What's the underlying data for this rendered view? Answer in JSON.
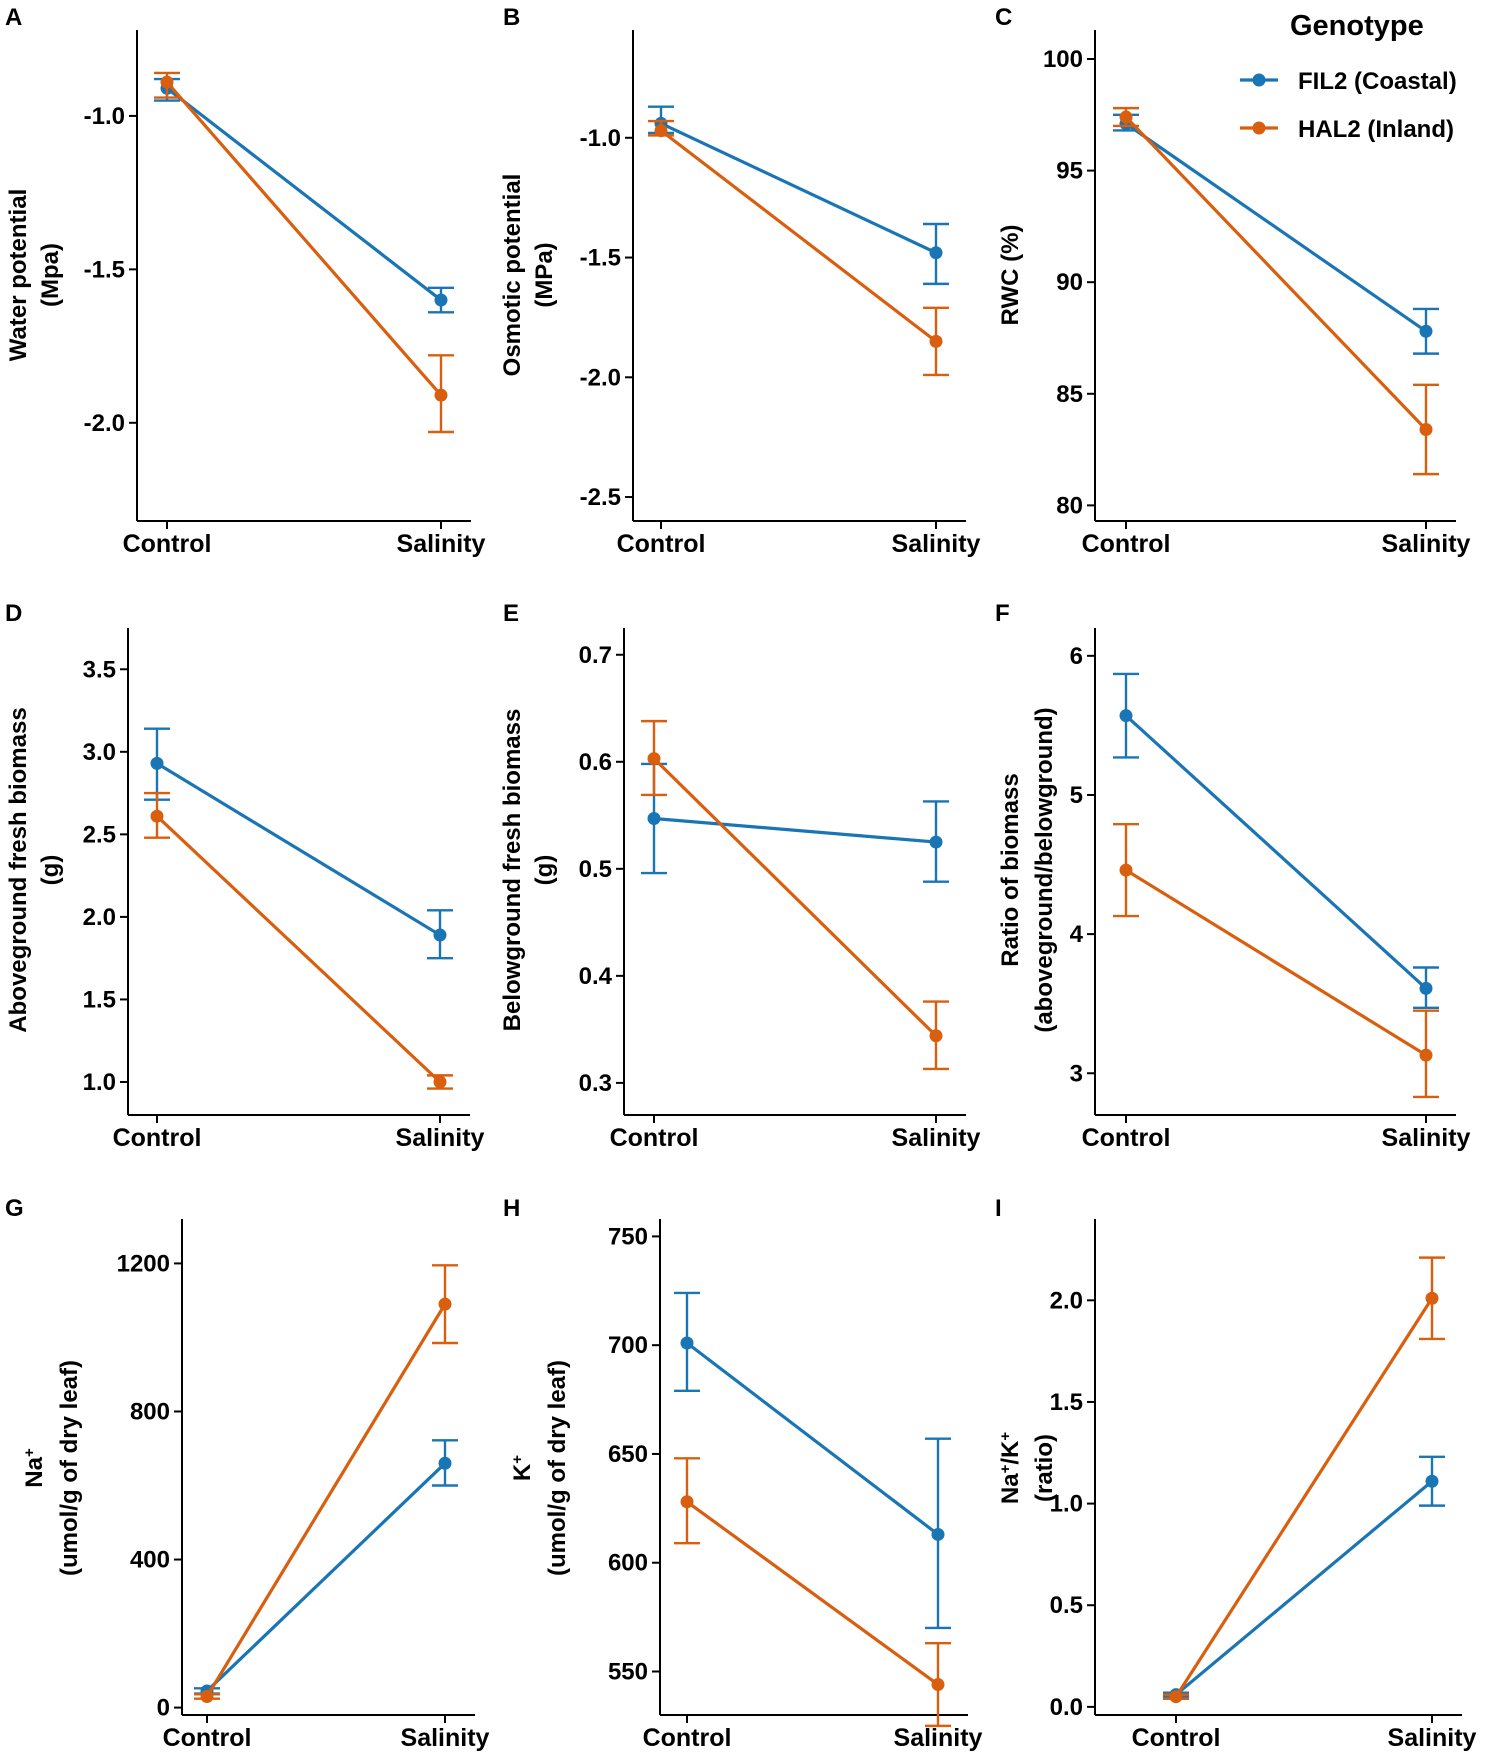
{
  "legend": {
    "title": "Genotype",
    "entries": [
      {
        "name": "FIL2 (Coastal)",
        "color": "#1a75b5"
      },
      {
        "name": "HAL2 (Inland)",
        "color": "#d95f0e"
      }
    ]
  },
  "chart_data": [
    {
      "panel": "A",
      "type": "line",
      "categories": [
        "Control",
        "Salinity"
      ],
      "ylabel": [
        "Water potential",
        "(Mpa)"
      ],
      "ylim": [
        -2.32,
        -0.72
      ],
      "yticks": [
        -1.0,
        -1.5,
        -2.0
      ],
      "ytick_labels": [
        "-1.0",
        "-1.5",
        "-2.0"
      ],
      "series": [
        {
          "name": "FIL2 (Coastal)",
          "values": [
            -0.91,
            -1.6
          ],
          "err_low": [
            -0.95,
            -1.64
          ],
          "err_high": [
            -0.88,
            -1.56
          ]
        },
        {
          "name": "HAL2 (Inland)",
          "values": [
            -0.89,
            -1.91
          ],
          "err_low": [
            -0.94,
            -2.03
          ],
          "err_high": [
            -0.86,
            -1.78
          ]
        }
      ]
    },
    {
      "panel": "B",
      "type": "line",
      "categories": [
        "Control",
        "Salinity"
      ],
      "ylabel": [
        "Osmotic potential",
        "(MPa)"
      ],
      "ylim": [
        -2.6,
        -0.55
      ],
      "yticks": [
        -1.0,
        -1.5,
        -2.0,
        -2.5
      ],
      "ytick_labels": [
        "-1.0",
        "-1.5",
        "-2.0",
        "-2.5"
      ],
      "series": [
        {
          "name": "FIL2 (Coastal)",
          "values": [
            -0.94,
            -1.48
          ],
          "err_low": [
            -0.98,
            -1.61
          ],
          "err_high": [
            -0.87,
            -1.36
          ]
        },
        {
          "name": "HAL2 (Inland)",
          "values": [
            -0.97,
            -1.85
          ],
          "err_low": [
            -0.99,
            -1.99
          ],
          "err_high": [
            -0.93,
            -1.71
          ]
        }
      ]
    },
    {
      "panel": "C",
      "type": "line",
      "categories": [
        "Control",
        "Salinity"
      ],
      "ylabel": [
        "RWC (%)"
      ],
      "ylim": [
        79.3,
        101.3
      ],
      "yticks": [
        100,
        95,
        90,
        85,
        80
      ],
      "ytick_labels": [
        "100",
        "95",
        "90",
        "85",
        "80"
      ],
      "series": [
        {
          "name": "FIL2 (Coastal)",
          "values": [
            97.1,
            87.8
          ],
          "err_low": [
            96.8,
            86.8
          ],
          "err_high": [
            97.5,
            88.8
          ]
        },
        {
          "name": "HAL2 (Inland)",
          "values": [
            97.4,
            83.4
          ],
          "err_low": [
            97.0,
            81.4
          ],
          "err_high": [
            97.8,
            85.4
          ]
        }
      ]
    },
    {
      "panel": "D",
      "type": "line",
      "categories": [
        "Control",
        "Salinity"
      ],
      "ylabel": [
        "Aboveground fresh biomass",
        "(g)"
      ],
      "ylim": [
        0.8,
        3.75
      ],
      "yticks": [
        3.5,
        3.0,
        2.5,
        2.0,
        1.5,
        1.0
      ],
      "ytick_labels": [
        "3.5",
        "3.0",
        "2.5",
        "2.0",
        "1.5",
        "1.0"
      ],
      "series": [
        {
          "name": "FIL2 (Coastal)",
          "values": [
            2.93,
            1.89
          ],
          "err_low": [
            2.71,
            1.75
          ],
          "err_high": [
            3.14,
            2.04
          ]
        },
        {
          "name": "HAL2 (Inland)",
          "values": [
            2.61,
            1.0
          ],
          "err_low": [
            2.48,
            0.96
          ],
          "err_high": [
            2.75,
            1.04
          ]
        }
      ]
    },
    {
      "panel": "E",
      "type": "line",
      "categories": [
        "Control",
        "Salinity"
      ],
      "ylabel": [
        "Belowground fresh biomass",
        "(g)"
      ],
      "ylim": [
        0.27,
        0.725
      ],
      "yticks": [
        0.7,
        0.6,
        0.5,
        0.4,
        0.3
      ],
      "ytick_labels": [
        "0.7",
        "0.6",
        "0.5",
        "0.4",
        "0.3"
      ],
      "series": [
        {
          "name": "FIL2 (Coastal)",
          "values": [
            0.547,
            0.525
          ],
          "err_low": [
            0.496,
            0.488
          ],
          "err_high": [
            0.598,
            0.563
          ]
        },
        {
          "name": "HAL2 (Inland)",
          "values": [
            0.603,
            0.344
          ],
          "err_low": [
            0.569,
            0.313
          ],
          "err_high": [
            0.638,
            0.376
          ]
        }
      ]
    },
    {
      "panel": "F",
      "type": "line",
      "categories": [
        "Control",
        "Salinity"
      ],
      "ylabel": [
        "Ratio of biomass",
        "(aboveground/belowground)"
      ],
      "ylim": [
        2.7,
        6.2
      ],
      "yticks": [
        6,
        5,
        4,
        3
      ],
      "ytick_labels": [
        "6",
        "5",
        "4",
        "3"
      ],
      "series": [
        {
          "name": "FIL2 (Coastal)",
          "values": [
            5.57,
            3.61
          ],
          "err_low": [
            5.27,
            3.47
          ],
          "err_high": [
            5.87,
            3.76
          ]
        },
        {
          "name": "HAL2 (Inland)",
          "values": [
            4.46,
            3.13
          ],
          "err_low": [
            4.13,
            2.83
          ],
          "err_high": [
            4.79,
            3.45
          ]
        }
      ]
    },
    {
      "panel": "G",
      "type": "line",
      "categories": [
        "Control",
        "Salinity"
      ],
      "ylabel": [
        "Na+",
        "(umol/g of dry leaf)"
      ],
      "ylim": [
        -20,
        1320
      ],
      "yticks": [
        1200,
        800,
        400,
        0
      ],
      "ytick_labels": [
        "1200",
        "800",
        "400",
        "0"
      ],
      "series": [
        {
          "name": "FIL2 (Coastal)",
          "values": [
            45,
            660
          ],
          "err_low": [
            38,
            600
          ],
          "err_high": [
            52,
            722
          ]
        },
        {
          "name": "HAL2 (Inland)",
          "values": [
            30,
            1090
          ],
          "err_low": [
            24,
            985
          ],
          "err_high": [
            36,
            1195
          ]
        }
      ]
    },
    {
      "panel": "H",
      "type": "line",
      "categories": [
        "Control",
        "Salinity"
      ],
      "ylabel": [
        "K+",
        "(umol/g of dry leaf)"
      ],
      "ylim": [
        530,
        758
      ],
      "yticks": [
        750,
        700,
        650,
        600,
        550
      ],
      "ytick_labels": [
        "750",
        "700",
        "650",
        "600",
        "550"
      ],
      "series": [
        {
          "name": "FIL2 (Coastal)",
          "values": [
            701,
            613
          ],
          "err_low": [
            679,
            570
          ],
          "err_high": [
            724,
            657
          ]
        },
        {
          "name": "HAL2 (Inland)",
          "values": [
            628,
            544
          ],
          "err_low": [
            609,
            525
          ],
          "err_high": [
            648,
            563
          ]
        }
      ]
    },
    {
      "panel": "I",
      "type": "line",
      "categories": [
        "Control",
        "Salinity"
      ],
      "ylabel": [
        "Na+/K+",
        "(ratio)"
      ],
      "ylim": [
        -0.04,
        2.4
      ],
      "yticks": [
        2.0,
        1.5,
        1.0,
        0.5,
        0.0
      ],
      "ytick_labels": [
        "2.0",
        "1.5",
        "1.0",
        "0.5",
        "0.0"
      ],
      "series": [
        {
          "name": "FIL2 (Coastal)",
          "values": [
            0.06,
            1.11
          ],
          "err_low": [
            0.05,
            0.99
          ],
          "err_high": [
            0.07,
            1.23
          ]
        },
        {
          "name": "HAL2 (Inland)",
          "values": [
            0.05,
            2.01
          ],
          "err_low": [
            0.04,
            1.81
          ],
          "err_high": [
            0.06,
            2.21
          ]
        }
      ]
    }
  ]
}
